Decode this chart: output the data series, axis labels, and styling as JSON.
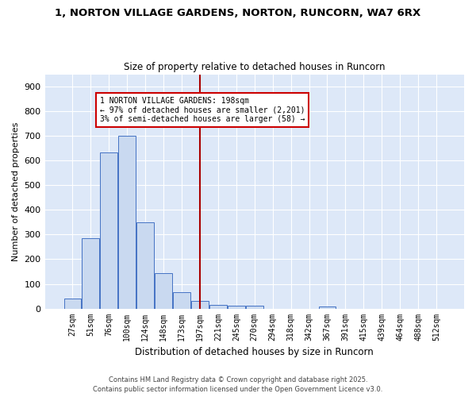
{
  "title": "1, NORTON VILLAGE GARDENS, NORTON, RUNCORN, WA7 6RX",
  "subtitle": "Size of property relative to detached houses in Runcorn",
  "xlabel": "Distribution of detached houses by size in Runcorn",
  "ylabel": "Number of detached properties",
  "footer_line1": "Contains HM Land Registry data © Crown copyright and database right 2025.",
  "footer_line2": "Contains public sector information licensed under the Open Government Licence v3.0.",
  "bin_labels": [
    "27sqm",
    "51sqm",
    "76sqm",
    "100sqm",
    "124sqm",
    "148sqm",
    "173sqm",
    "197sqm",
    "221sqm",
    "245sqm",
    "270sqm",
    "294sqm",
    "318sqm",
    "342sqm",
    "367sqm",
    "391sqm",
    "415sqm",
    "439sqm",
    "464sqm",
    "488sqm",
    "512sqm"
  ],
  "bar_values": [
    40,
    285,
    633,
    700,
    350,
    145,
    65,
    30,
    15,
    11,
    11,
    0,
    0,
    0,
    8,
    0,
    0,
    0,
    0,
    0,
    0
  ],
  "bar_color": "#c9d9f0",
  "bar_edgecolor": "#4472c4",
  "bg_color": "#dde8f8",
  "grid_color": "#ffffff",
  "vline_bin_index": 7,
  "vline_color": "#aa0000",
  "annotation_text": "1 NORTON VILLAGE GARDENS: 198sqm\n← 97% of detached houses are smaller (2,201)\n3% of semi-detached houses are larger (58) →",
  "annotation_box_edgecolor": "#cc0000",
  "annotation_box_facecolor": "#ffffff",
  "ylim_max": 950,
  "yticks": [
    0,
    100,
    200,
    300,
    400,
    500,
    600,
    700,
    800,
    900
  ]
}
